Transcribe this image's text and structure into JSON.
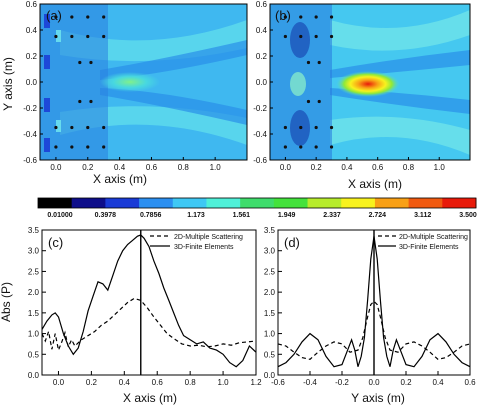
{
  "chart_data": [
    {
      "panel_label": "(a)",
      "type": "heatmap",
      "xlabel": "X axis (m)",
      "ylabel": "Y axis (m)",
      "xlim": [
        -0.1,
        1.2
      ],
      "ylim": [
        -0.6,
        0.6
      ],
      "x_ticks": [
        "0.0",
        "0.2",
        "0.4",
        "0.6",
        "0.8",
        "1.0"
      ],
      "y_ticks": [
        "0.6",
        "0.4",
        "0.2",
        "0.0",
        "-0.2",
        "-0.4",
        "-0.6"
      ],
      "focus_peak": {
        "x": 0.45,
        "y": 0.0,
        "level": 1.2
      }
    },
    {
      "panel_label": "(b)",
      "type": "heatmap",
      "xlabel": "X axis (m)",
      "ylabel": "",
      "xlim": [
        -0.1,
        1.2
      ],
      "ylim": [
        -0.6,
        0.6
      ],
      "x_ticks": [
        "0.0",
        "0.2",
        "0.4",
        "0.6",
        "0.8",
        "1.0"
      ],
      "y_ticks": [
        "0.6",
        "0.4",
        "0.2",
        "0.0",
        "-0.2",
        "-0.4",
        "-0.6"
      ],
      "focus_peak": {
        "x": 0.5,
        "y": 0.0,
        "level": 3.4
      }
    },
    {
      "type": "colorbar",
      "levels": [
        "0.01000",
        "0.3978",
        "0.7856",
        "1.173",
        "1.561",
        "1.949",
        "2.337",
        "2.724",
        "3.112",
        "3.500"
      ],
      "colors": [
        "#000000",
        "#0e0e8a",
        "#1a3bd6",
        "#2c8ff0",
        "#3fc8f4",
        "#4ff0d8",
        "#3fdc6c",
        "#44e23c",
        "#b7ec2c",
        "#f8f21e",
        "#f8a016",
        "#f05a10",
        "#e81a0a"
      ]
    },
    {
      "panel_label": "(c)",
      "type": "line",
      "xlabel": "X axis (m)",
      "ylabel": "Abs (P)",
      "xlim": [
        -0.1,
        1.2
      ],
      "ylim": [
        0.0,
        3.5
      ],
      "x_ticks": [
        0.0,
        0.2,
        0.4,
        0.6,
        0.8,
        1.0,
        1.2
      ],
      "y_ticks": [
        0.0,
        0.5,
        1.0,
        1.5,
        2.0,
        2.5,
        3.0,
        3.5
      ],
      "x_tick_labels": [
        "0.0",
        "0.2",
        "0.4",
        "0.6",
        "0.8",
        "1.0",
        "1.2"
      ],
      "y_tick_labels": [
        "0.0",
        "0.5",
        "1.0",
        "1.5",
        "2.0",
        "2.5",
        "3.0",
        "3.5"
      ],
      "vline_x": 0.5,
      "series": [
        {
          "name": "2D-Multiple Scattering",
          "style": "dashed",
          "x": [
            -0.1,
            -0.08,
            -0.06,
            -0.04,
            -0.02,
            0.0,
            0.02,
            0.04,
            0.06,
            0.08,
            0.1,
            0.14,
            0.18,
            0.22,
            0.26,
            0.3,
            0.34,
            0.38,
            0.42,
            0.46,
            0.5,
            0.54,
            0.58,
            0.62,
            0.66,
            0.7,
            0.75,
            0.8,
            0.85,
            0.9,
            0.95,
            1.0,
            1.05,
            1.1,
            1.15,
            1.2
          ],
          "y": [
            1.0,
            0.82,
            1.05,
            0.62,
            1.0,
            0.6,
            0.8,
            1.02,
            0.68,
            0.85,
            0.7,
            0.85,
            0.95,
            1.05,
            1.2,
            1.3,
            1.45,
            1.6,
            1.75,
            1.85,
            1.8,
            1.62,
            1.4,
            1.2,
            1.0,
            0.88,
            0.75,
            0.7,
            0.72,
            0.68,
            0.7,
            0.75,
            0.72,
            0.78,
            0.8,
            0.82
          ]
        },
        {
          "name": "3D-Finite Elements",
          "style": "solid",
          "x": [
            -0.1,
            -0.07,
            -0.04,
            -0.02,
            0.0,
            0.03,
            0.06,
            0.09,
            0.12,
            0.15,
            0.18,
            0.21,
            0.24,
            0.27,
            0.3,
            0.33,
            0.36,
            0.39,
            0.42,
            0.45,
            0.48,
            0.5,
            0.52,
            0.55,
            0.58,
            0.61,
            0.64,
            0.67,
            0.7,
            0.73,
            0.76,
            0.8,
            0.84,
            0.88,
            0.92,
            0.96,
            1.0,
            1.04,
            1.08,
            1.12,
            1.16,
            1.2
          ],
          "y": [
            1.1,
            1.3,
            1.45,
            1.5,
            1.4,
            1.0,
            0.7,
            0.5,
            0.65,
            1.05,
            1.55,
            1.9,
            2.25,
            2.2,
            2.05,
            2.4,
            2.75,
            3.0,
            3.15,
            3.25,
            3.35,
            3.38,
            3.3,
            3.1,
            2.75,
            2.45,
            2.1,
            1.8,
            1.5,
            1.2,
            0.95,
            0.85,
            0.75,
            0.8,
            0.65,
            0.6,
            0.5,
            0.3,
            0.2,
            0.35,
            0.7,
            0.55
          ]
        }
      ]
    },
    {
      "panel_label": "(d)",
      "type": "line",
      "xlabel": "Y axis (m)",
      "ylabel": "",
      "xlim": [
        -0.6,
        0.6
      ],
      "ylim": [
        0.0,
        3.5
      ],
      "x_ticks": [
        -0.6,
        -0.4,
        -0.2,
        0.0,
        0.2,
        0.4,
        0.6
      ],
      "y_ticks": [
        0.0,
        0.5,
        1.0,
        1.5,
        2.0,
        2.5,
        3.0,
        3.5
      ],
      "x_tick_labels": [
        "-0.6",
        "-0.4",
        "-0.2",
        "0.0",
        "0.2",
        "0.4",
        "0.6"
      ],
      "y_tick_labels": [
        "0.0",
        "0.5",
        "1.0",
        "1.5",
        "2.0",
        "2.5",
        "3.0",
        "3.5"
      ],
      "vline_x": 0.0,
      "series": [
        {
          "name": "2D-Multiple Scattering",
          "style": "dashed",
          "x": [
            -0.6,
            -0.55,
            -0.5,
            -0.45,
            -0.4,
            -0.35,
            -0.3,
            -0.25,
            -0.2,
            -0.15,
            -0.1,
            -0.07,
            -0.04,
            -0.02,
            0.0,
            0.02,
            0.04,
            0.07,
            0.1,
            0.15,
            0.2,
            0.25,
            0.3,
            0.35,
            0.4,
            0.45,
            0.5,
            0.55,
            0.6
          ],
          "y": [
            0.75,
            0.7,
            0.55,
            0.42,
            0.38,
            0.55,
            0.7,
            0.8,
            0.75,
            0.55,
            0.6,
            0.9,
            1.4,
            1.7,
            1.78,
            1.7,
            1.4,
            0.9,
            0.6,
            0.55,
            0.75,
            0.8,
            0.7,
            0.55,
            0.38,
            0.42,
            0.55,
            0.7,
            0.75
          ]
        },
        {
          "name": "3D-Finite Elements",
          "style": "solid",
          "x": [
            -0.6,
            -0.55,
            -0.5,
            -0.45,
            -0.4,
            -0.35,
            -0.3,
            -0.25,
            -0.2,
            -0.17,
            -0.14,
            -0.12,
            -0.1,
            -0.08,
            -0.06,
            -0.04,
            -0.02,
            0.0,
            0.02,
            0.04,
            0.06,
            0.08,
            0.1,
            0.12,
            0.14,
            0.17,
            0.2,
            0.25,
            0.3,
            0.35,
            0.4,
            0.45,
            0.5,
            0.55,
            0.6
          ],
          "y": [
            0.2,
            0.3,
            0.5,
            0.8,
            1.0,
            0.85,
            0.45,
            0.2,
            0.25,
            0.55,
            0.85,
            0.6,
            0.2,
            0.45,
            0.9,
            1.8,
            2.8,
            3.35,
            2.8,
            1.8,
            0.9,
            0.45,
            0.2,
            0.6,
            0.85,
            0.55,
            0.25,
            0.2,
            0.45,
            0.85,
            1.0,
            0.8,
            0.5,
            0.3,
            0.2
          ]
        }
      ]
    }
  ]
}
